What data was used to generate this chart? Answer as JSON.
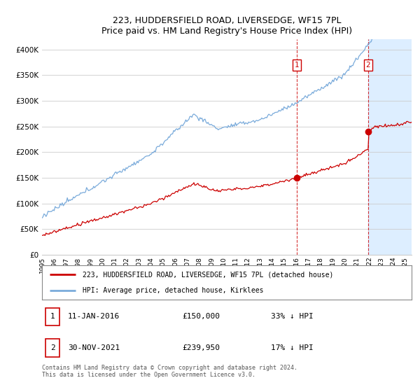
{
  "title": "223, HUDDERSFIELD ROAD, LIVERSEDGE, WF15 7PL",
  "subtitle": "Price paid vs. HM Land Registry's House Price Index (HPI)",
  "ylim": [
    0,
    420000
  ],
  "yticks": [
    0,
    50000,
    100000,
    150000,
    200000,
    250000,
    300000,
    350000,
    400000
  ],
  "sale1_x": 2016.04,
  "sale1_y": 150000,
  "sale1_label": "1",
  "sale2_x": 2021.92,
  "sale2_y": 239950,
  "sale2_label": "2",
  "legend_line1": "223, HUDDERSFIELD ROAD, LIVERSEDGE, WF15 7PL (detached house)",
  "legend_line2": "HPI: Average price, detached house, Kirklees",
  "info1_num": "1",
  "info1_date": "11-JAN-2016",
  "info1_price": "£150,000",
  "info1_hpi": "33% ↓ HPI",
  "info2_num": "2",
  "info2_date": "30-NOV-2021",
  "info2_price": "£239,950",
  "info2_hpi": "17% ↓ HPI",
  "footnote": "Contains HM Land Registry data © Crown copyright and database right 2024.\nThis data is licensed under the Open Government Licence v3.0.",
  "red_color": "#cc0000",
  "blue_color": "#7aabdb",
  "shaded_color": "#ddeeff",
  "background_color": "#ffffff",
  "grid_color": "#cccccc",
  "xlim_start": 1995.0,
  "xlim_end": 2025.5
}
